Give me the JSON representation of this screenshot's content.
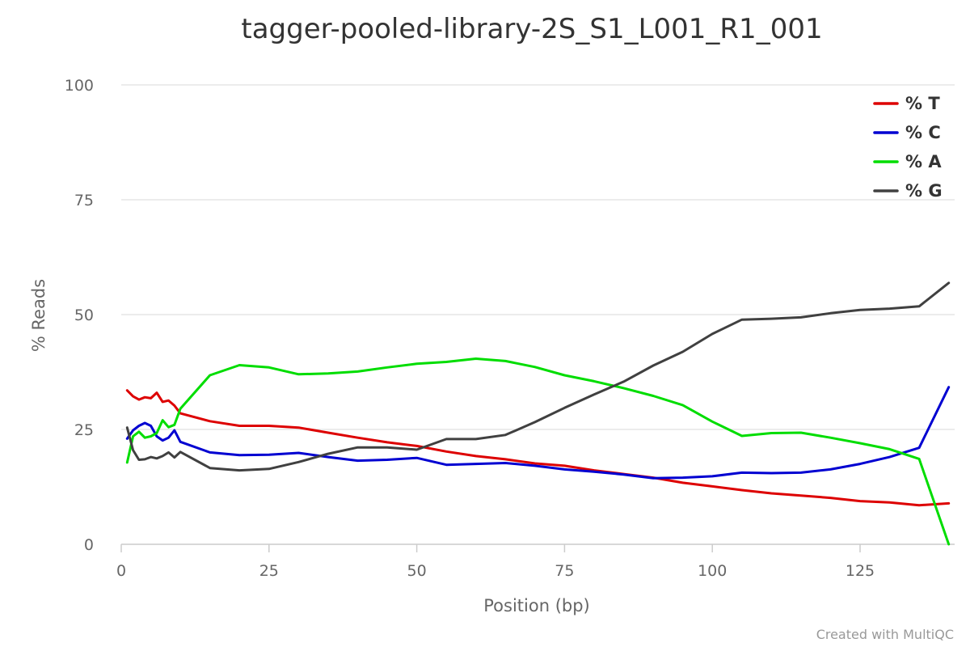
{
  "credit": "Created with MultiQC",
  "chart_data": {
    "type": "line",
    "title": "tagger-pooled-library-2S_S1_L001_R1_001",
    "xlabel": "Position (bp)",
    "ylabel": "% Reads",
    "xlim": [
      0,
      141
    ],
    "ylim": [
      0,
      100
    ],
    "xticks": [
      "0",
      "25",
      "50",
      "75",
      "100",
      "125"
    ],
    "yticks": [
      "0",
      "25",
      "50",
      "75",
      "100"
    ],
    "grid": true,
    "legend_position": "top-right",
    "x": [
      1,
      2,
      3,
      4,
      5,
      6,
      7,
      8,
      9,
      10,
      15,
      20,
      25,
      30,
      35,
      40,
      45,
      50,
      55,
      60,
      65,
      70,
      75,
      80,
      85,
      90,
      95,
      100,
      105,
      110,
      115,
      120,
      125,
      130,
      135,
      140
    ],
    "series": [
      {
        "name": "% T",
        "color": "#dd0000",
        "values": [
          33.5,
          32.2,
          31.5,
          32.0,
          31.8,
          33.0,
          31.0,
          31.3,
          30.2,
          28.5,
          26.8,
          25.8,
          25.8,
          25.4,
          24.3,
          23.2,
          22.2,
          21.4,
          20.2,
          19.2,
          18.5,
          17.6,
          17.1,
          16.1,
          15.3,
          14.5,
          13.4,
          12.6,
          11.8,
          11.1,
          10.6,
          10.1,
          9.4,
          9.1,
          8.5,
          8.9
        ]
      },
      {
        "name": "% C",
        "color": "#0000d1",
        "values": [
          23.0,
          24.8,
          25.8,
          26.4,
          25.8,
          23.5,
          22.6,
          23.2,
          24.8,
          22.3,
          20.0,
          19.4,
          19.5,
          19.9,
          19.0,
          18.2,
          18.4,
          18.8,
          17.3,
          17.5,
          17.7,
          17.1,
          16.3,
          15.8,
          15.2,
          14.4,
          14.5,
          14.8,
          15.6,
          15.5,
          15.6,
          16.3,
          17.5,
          19.0,
          21.0,
          34.2
        ]
      },
      {
        "name": "% A",
        "color": "#00dd00",
        "values": [
          17.8,
          23.5,
          24.5,
          23.2,
          23.5,
          24.2,
          27.0,
          25.5,
          26.0,
          29.5,
          36.8,
          39.0,
          38.5,
          37.0,
          37.2,
          37.6,
          38.5,
          39.3,
          39.7,
          40.4,
          39.9,
          38.6,
          36.8,
          35.5,
          34.0,
          32.3,
          30.3,
          26.7,
          23.6,
          24.2,
          24.3,
          23.2,
          22.0,
          20.7,
          18.6,
          0.0
        ]
      },
      {
        "name": "% G",
        "color": "#404040",
        "values": [
          25.4,
          20.5,
          18.4,
          18.5,
          19.0,
          18.7,
          19.2,
          20.0,
          18.9,
          20.1,
          16.6,
          16.1,
          16.4,
          17.9,
          19.7,
          21.1,
          21.1,
          20.6,
          22.9,
          22.9,
          23.8,
          26.6,
          29.7,
          32.6,
          35.4,
          38.9,
          41.9,
          45.8,
          48.9,
          49.1,
          49.4,
          50.3,
          51.0,
          51.3,
          51.8,
          56.9
        ]
      }
    ]
  }
}
